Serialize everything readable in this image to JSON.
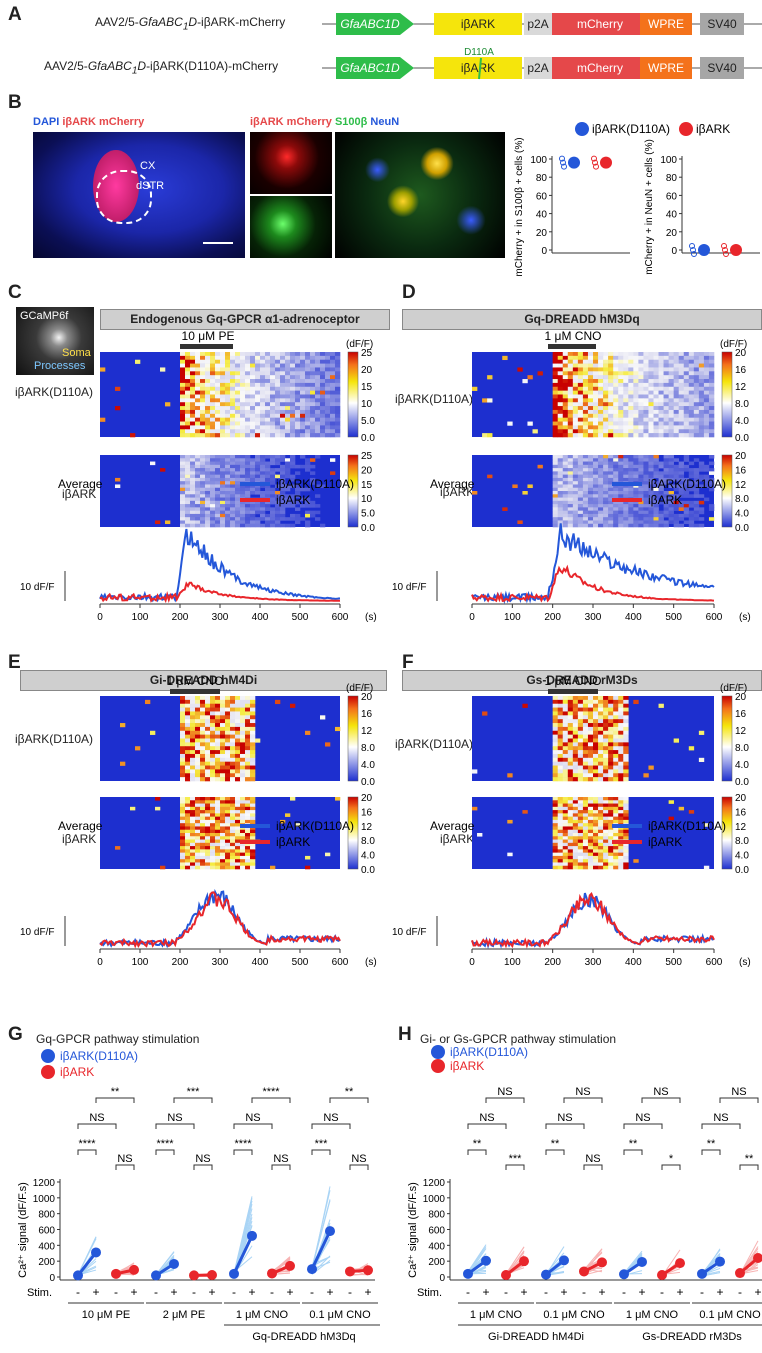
{
  "panels": {
    "A": "A",
    "B": "B",
    "C": "C",
    "D": "D",
    "E": "E",
    "F": "F",
    "G": "G",
    "H": "H"
  },
  "constructs": [
    {
      "name": "AAV2/5-GfaABC1D-iβARK-mCherry",
      "elements": [
        "GfaABC1D",
        "iβARK",
        "p2A",
        "mCherry",
        "WPRE",
        "SV40"
      ]
    },
    {
      "name": "AAV2/5-GfaABC1D-iβARK(D110A)-mCherry",
      "elements": [
        "GfaABC1D",
        "iβARK",
        "p2A",
        "mCherry",
        "WPRE",
        "SV40"
      ],
      "mutation": "D110A"
    }
  ],
  "colors": {
    "promoter": "#2ebd4a",
    "ibark": "#f5e50c",
    "p2a": "#d9d9d9",
    "mcherry": "#e5484a",
    "wpre": "#f4721b",
    "sv40": "#a6a6a6",
    "d110a": "#2457d9",
    "wt": "#e8262b",
    "heat_low": "#1d2fcf",
    "heat_high": "#c80000"
  },
  "panelB": {
    "img1_title_a": "DAPI",
    "img1_title_b": " iβARK mCherry",
    "img1_labels": [
      "CX",
      "dSTR"
    ],
    "img2_title_a": "iβARK mCherry",
    "img2_title_b": " S100β",
    "img2_title_c": " NeuN",
    "legend": [
      "iβARK(D110A)",
      "iβARK"
    ],
    "ylabel1": "mCherry + in S100β + cells (%)",
    "ylabel2": "mCherry + in NeuN + cells (%)",
    "yticks": [
      "0",
      "20",
      "40",
      "60",
      "80",
      "100"
    ]
  },
  "heatmaps": {
    "C": {
      "title": "Endogenous Gq-GPCR α1-adrenoceptor",
      "stim": "10 μM PE",
      "scale": [
        "25",
        "20",
        "15",
        "10",
        "5.0",
        "0.0"
      ],
      "inset_label": "GCaMP6f",
      "inset_soma": "Soma",
      "inset_proc": "Processes"
    },
    "D": {
      "title": "Gq-DREADD hM3Dq",
      "stim": "1 μM CNO",
      "scale": [
        "20",
        "16",
        "12",
        "8.0",
        "4.0",
        "0.0"
      ]
    },
    "E": {
      "title": "Gi-DREADD hM4Di",
      "stim": "1 μM CNO",
      "scale": [
        "20",
        "16",
        "12",
        "8.0",
        "4.0",
        "0.0"
      ]
    },
    "F": {
      "title": "Gs-DREADD rM3Ds",
      "stim": "1 μM CNO",
      "scale": [
        "20",
        "16",
        "12",
        "8.0",
        "4.0",
        "0.0"
      ]
    },
    "unit": "(dF/F)",
    "row_labels": [
      "iβARK(D110A)",
      "iβARK"
    ]
  },
  "traces": {
    "avg_label": "Average",
    "scalebar": "10 dF/F",
    "xunit": "(s)",
    "xticks": [
      "0",
      "100",
      "200",
      "300",
      "400",
      "500",
      "600"
    ],
    "legend": [
      "iβARK(D110A)",
      "iβARK"
    ]
  },
  "panelG": {
    "title": "Gq-GPCR pathway stimulation",
    "legend": [
      "iβARK(D110A)",
      "iβARK"
    ],
    "ylabel": "Ca²⁺ signal (dF/F.s)",
    "yticks": [
      "0",
      "200",
      "400",
      "600",
      "800",
      "1000",
      "1200"
    ],
    "stim_label": "Stim.",
    "groups": [
      "10 μM PE",
      "2 μM PE",
      "1 μM CNO",
      "0.1 μM CNO"
    ],
    "bottom": "Gq-DREADD hM3Dq",
    "means_d110a": [
      [
        20,
        310
      ],
      [
        20,
        165
      ],
      [
        40,
        520
      ],
      [
        100,
        580
      ]
    ],
    "means_wt": [
      [
        40,
        90
      ],
      [
        20,
        25
      ],
      [
        45,
        140
      ],
      [
        70,
        85
      ]
    ],
    "sig_top": [
      "**",
      "***",
      "****",
      "**"
    ],
    "sig_mid": [
      "NS",
      "NS",
      "NS",
      "NS"
    ],
    "sig_d110a": [
      "****",
      "****",
      "****",
      "***"
    ],
    "sig_wt": [
      "NS",
      "NS",
      "NS",
      "NS"
    ]
  },
  "panelH": {
    "title": "Gi- or Gs-GPCR pathway stimulation",
    "legend": [
      "iβARK(D110A)",
      "iβARK"
    ],
    "ylabel": "Ca²⁺ signal (dF/F.s)",
    "yticks": [
      "0",
      "200",
      "400",
      "600",
      "800",
      "1000",
      "1200"
    ],
    "stim_label": "Stim.",
    "groups": [
      "1 μM CNO",
      "0.1 μM CNO",
      "1 μM CNO",
      "0.1 μM CNO"
    ],
    "bottom": [
      "Gi-DREADD hM4Di",
      "Gs-DREADD rM3Ds"
    ],
    "means_d110a": [
      [
        40,
        205
      ],
      [
        30,
        210
      ],
      [
        35,
        190
      ],
      [
        40,
        195
      ]
    ],
    "means_wt": [
      [
        25,
        200
      ],
      [
        70,
        185
      ],
      [
        25,
        175
      ],
      [
        50,
        240
      ]
    ],
    "sig_top": [
      "NS",
      "NS",
      "NS",
      "NS"
    ],
    "sig_mid": [
      "NS",
      "NS",
      "NS",
      "NS"
    ],
    "sig_d110a": [
      "**",
      "**",
      "**",
      "**"
    ],
    "sig_wt": [
      "***",
      "NS",
      "*",
      "**"
    ]
  }
}
